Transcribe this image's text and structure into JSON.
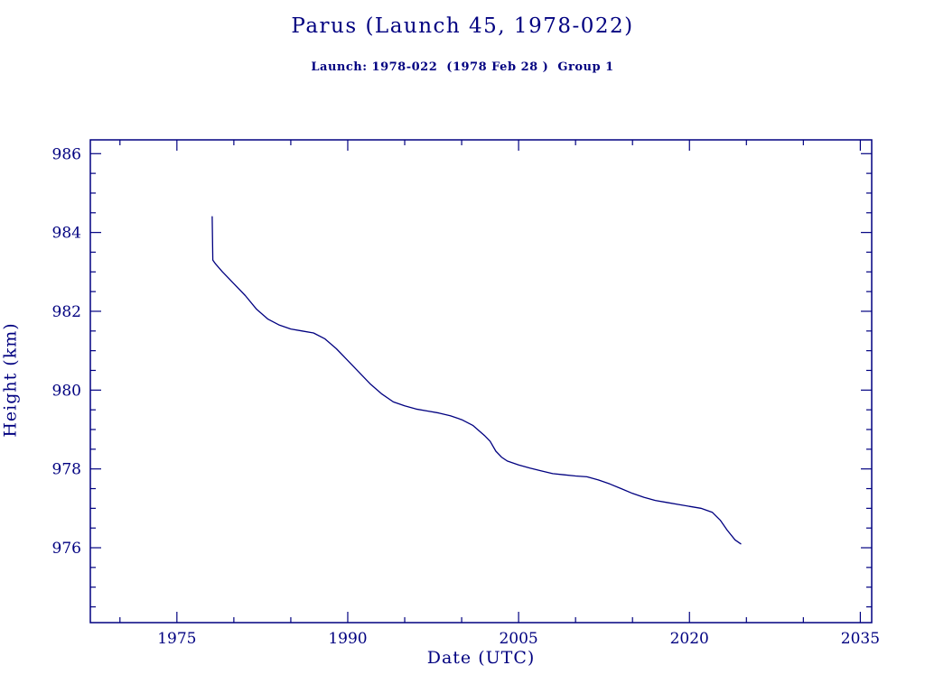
{
  "chart_data": {
    "type": "line",
    "title": "Parus (Launch 45, 1978-022)",
    "subtitle": "Launch: 1978-022  (1978 Feb 28 )  Group 1",
    "xlabel": "Date (UTC)",
    "ylabel": "Height (km)",
    "xlim": [
      1967.4,
      2036.0
    ],
    "ylim": [
      974.1,
      986.35
    ],
    "xticks": [
      1975,
      1990,
      2005,
      2020,
      2035
    ],
    "yticks": [
      976,
      978,
      980,
      982,
      984,
      986
    ],
    "x_minor_step": 5,
    "y_minor_step": 0.5,
    "grid": false,
    "legend": "none",
    "line_color": "#000080",
    "axis_color": "#000080",
    "background_color": "#ffffff",
    "series": [
      {
        "name": "height",
        "x": [
          1978.1,
          1978.15,
          1978.4,
          1979,
          1980,
          1981,
          1982,
          1983,
          1984,
          1985,
          1986,
          1987,
          1988,
          1989,
          1990,
          1991,
          1992,
          1993,
          1994,
          1995,
          1996,
          1997,
          1998,
          1999,
          2000,
          2001,
          2002,
          2002.5,
          2003,
          2003.5,
          2004,
          2005,
          2006,
          2007,
          2008,
          2009,
          2010,
          2011,
          2012,
          2013,
          2014,
          2015,
          2016,
          2017,
          2018,
          2019,
          2020,
          2021,
          2022,
          2022.7,
          2023.3,
          2024,
          2024.5
        ],
        "y": [
          984.4,
          983.3,
          983.2,
          983.0,
          982.7,
          982.4,
          982.05,
          981.8,
          981.65,
          981.55,
          981.5,
          981.45,
          981.3,
          981.05,
          980.75,
          980.45,
          980.15,
          979.9,
          979.7,
          979.6,
          979.52,
          979.47,
          979.42,
          979.35,
          979.25,
          979.1,
          978.85,
          978.7,
          978.45,
          978.3,
          978.2,
          978.1,
          978.02,
          977.95,
          977.88,
          977.85,
          977.82,
          977.8,
          977.72,
          977.62,
          977.5,
          977.38,
          977.28,
          977.2,
          977.15,
          977.1,
          977.05,
          977.0,
          976.9,
          976.7,
          976.45,
          976.2,
          976.1
        ]
      }
    ]
  }
}
